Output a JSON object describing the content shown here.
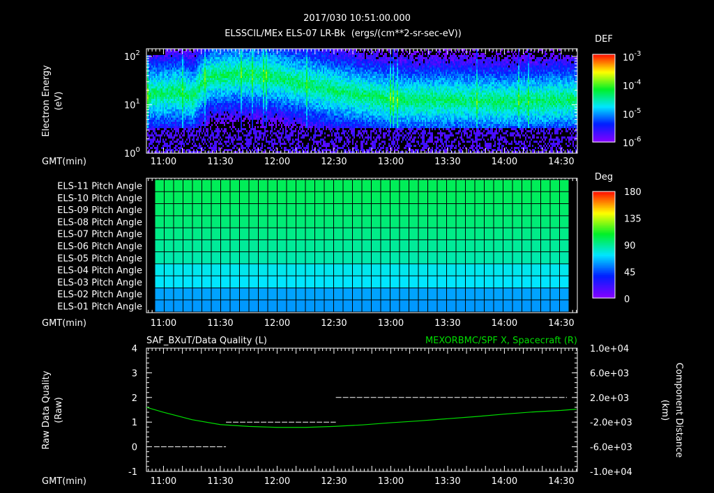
{
  "header": {
    "timestamp": "2017/030 10:51:00.000",
    "subtitle": "ELSSCIL/MEx ELS-07 LR-Bk  (ergs/(cm**2-sr-sec-eV))"
  },
  "time_axis": {
    "label": "GMT(min)",
    "ticks": [
      "11:00",
      "11:30",
      "12:00",
      "12:30",
      "13:00",
      "13:30",
      "14:00",
      "14:30"
    ],
    "tick_minutes": [
      660,
      690,
      720,
      750,
      780,
      810,
      840,
      870
    ],
    "range_minutes": [
      651,
      878.5
    ]
  },
  "chart_data": [
    {
      "type": "heatmap",
      "title": "ELSSCIL/MEx ELS-07 LR-Bk",
      "ylabel": "Electron Energy (eV)",
      "ylabel_lines": [
        "Electron Energy",
        "(eV)"
      ],
      "yscale": "log",
      "ylim": [
        1,
        145
      ],
      "yticks": [
        {
          "base": "10",
          "exp": "0",
          "value": 1
        },
        {
          "base": "10",
          "exp": "1",
          "value": 10
        },
        {
          "base": "10",
          "exp": "2",
          "value": 100
        }
      ],
      "colorbar": {
        "title": "DEF",
        "scale": "log",
        "range": [
          1e-06,
          0.001
        ],
        "ticks": [
          {
            "base": "10",
            "exp": "-3"
          },
          {
            "base": "10",
            "exp": "-4"
          },
          {
            "base": "10",
            "exp": "-5"
          },
          {
            "base": "10",
            "exp": "-6"
          }
        ]
      },
      "band_center_eV_by_time": [
        [
          651,
          17
        ],
        [
          660,
          18
        ],
        [
          666,
          20
        ],
        [
          675,
          15
        ],
        [
          684,
          40
        ],
        [
          700,
          45
        ],
        [
          716,
          40
        ],
        [
          730,
          30
        ],
        [
          750,
          20
        ],
        [
          780,
          13
        ],
        [
          810,
          13
        ],
        [
          840,
          12
        ],
        [
          870,
          13
        ],
        [
          878,
          13
        ]
      ]
    },
    {
      "type": "heatmap",
      "colorbar": {
        "title": "Deg",
        "range": [
          0,
          180
        ],
        "ticks": [
          "180",
          "135",
          "90",
          "45",
          "0"
        ]
      },
      "rows": [
        {
          "label": "ELS-11 Pitch Angle",
          "value": 100
        },
        {
          "label": "ELS-10 Pitch Angle",
          "value": 99
        },
        {
          "label": "ELS-09 Pitch Angle",
          "value": 97
        },
        {
          "label": "ELS-08 Pitch Angle",
          "value": 95
        },
        {
          "label": "ELS-07 Pitch Angle",
          "value": 92
        },
        {
          "label": "ELS-06 Pitch Angle",
          "value": 89
        },
        {
          "label": "ELS-05 Pitch Angle",
          "value": 86
        },
        {
          "label": "ELS-04 Pitch Angle",
          "value": 75
        },
        {
          "label": "ELS-03 Pitch Angle",
          "value": 72
        },
        {
          "label": "ELS-02 Pitch Angle",
          "value": 60
        },
        {
          "label": "ELS-01 Pitch Angle",
          "value": 58
        }
      ]
    },
    {
      "type": "line",
      "title_left": "SAF_BXuT/Data Quality (L)",
      "title_right": "MEXORBMC/SPF X, Spacecraft (R)",
      "ylabel_left_lines": [
        "Raw Data Quality",
        "(Raw)"
      ],
      "ylabel_right_lines": [
        "Component Distance",
        "(km)"
      ],
      "ylim_left": [
        -1,
        4
      ],
      "yticks_left": [
        "4",
        "3",
        "2",
        "1",
        "0",
        "-1"
      ],
      "ylim_right": [
        -10000,
        10000
      ],
      "yticks_right": [
        "1.0e+04",
        "6.0e+03",
        "2.0e+03",
        "-2.0e+03",
        "-6.0e+03",
        "-1.0e+04"
      ],
      "series": [
        {
          "name": "Data Quality",
          "axis": "left",
          "color": "#ffffff",
          "segments": [
            [
              655,
              693,
              0
            ],
            [
              693,
              751,
              1
            ],
            [
              751,
              873,
              2
            ]
          ]
        },
        {
          "name": "SPF X",
          "axis": "right",
          "color": "#00dd00",
          "points": [
            [
              651,
              400
            ],
            [
              660,
              -400
            ],
            [
              675,
              -1600
            ],
            [
              690,
              -2400
            ],
            [
              705,
              -2700
            ],
            [
              720,
              -2850
            ],
            [
              735,
              -2850
            ],
            [
              750,
              -2700
            ],
            [
              765,
              -2450
            ],
            [
              780,
              -2100
            ],
            [
              795,
              -1800
            ],
            [
              810,
              -1450
            ],
            [
              825,
              -1100
            ],
            [
              840,
              -700
            ],
            [
              855,
              -350
            ],
            [
              870,
              -100
            ],
            [
              878,
              100
            ]
          ]
        }
      ]
    }
  ]
}
